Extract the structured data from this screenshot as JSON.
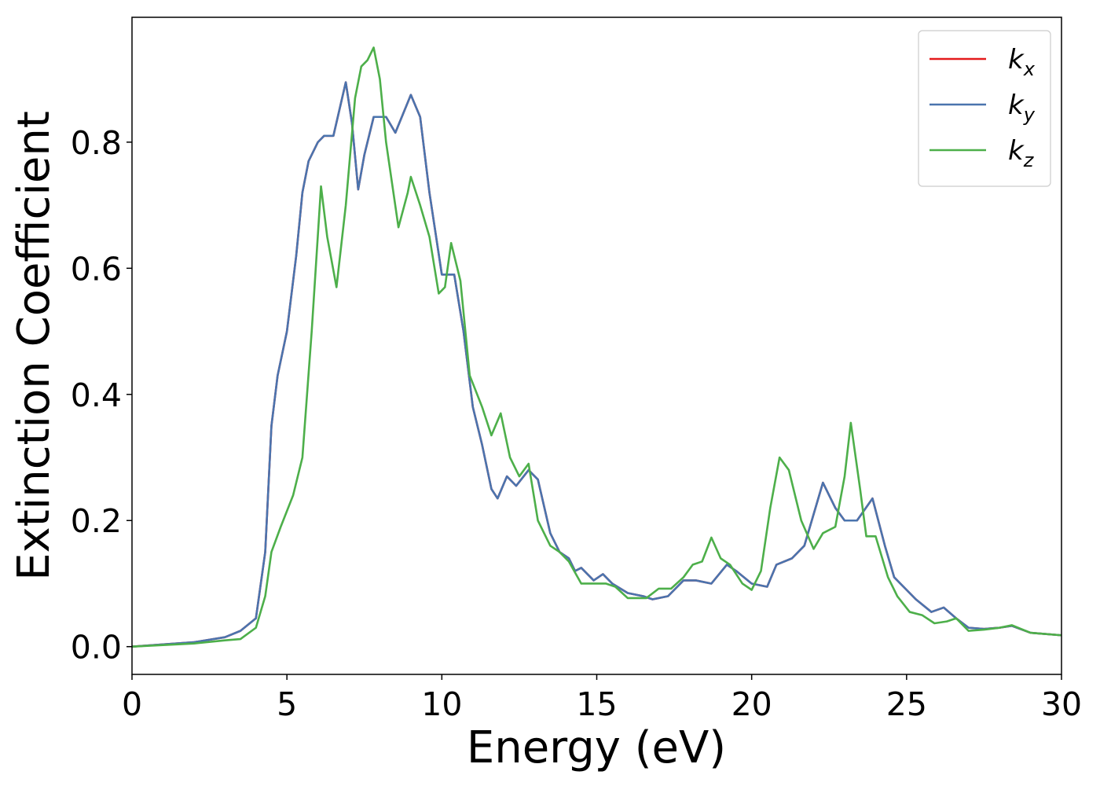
{
  "chart_data": {
    "type": "line",
    "xlabel": "Energy (eV)",
    "ylabel": "Extinction Coefficient",
    "xlim": [
      0,
      30
    ],
    "ylim": [
      -0.044,
      0.998
    ],
    "xticks": [
      0,
      5,
      10,
      15,
      20,
      25,
      30
    ],
    "yticks": [
      {
        "value": 0,
        "label": "0.0"
      },
      0.2,
      0.4,
      0.6,
      0.8
    ],
    "legend": "upper right",
    "series": [
      {
        "name": "kx",
        "color": "#e41a1c",
        "x": [
          0,
          2,
          3,
          3.5,
          4.0,
          4.3,
          4.5,
          4.7,
          5.0,
          5.3,
          5.5,
          5.7,
          6.0,
          6.2,
          6.5,
          6.9,
          7.1,
          7.3,
          7.5,
          7.8,
          8.2,
          8.5,
          9.0,
          9.3,
          9.6,
          10.0,
          10.4,
          10.7,
          11.0,
          11.3,
          11.6,
          11.8,
          12.1,
          12.4,
          12.8,
          13.1,
          13.5,
          13.8,
          14.1,
          14.3,
          14.5,
          14.9,
          15.2,
          15.5,
          16.0,
          16.5,
          16.8,
          17.3,
          17.8,
          18.2,
          18.7,
          19.2,
          19.5,
          20.0,
          20.5,
          20.8,
          21.3,
          21.7,
          22.3,
          22.7,
          23.0,
          23.4,
          23.9,
          24.3,
          24.6,
          25.0,
          25.3,
          25.8,
          26.2,
          26.6,
          27.0,
          27.5,
          28.0,
          28.4,
          29.0,
          30.0
        ],
        "values": [
          0,
          0.007,
          0.015,
          0.025,
          0.045,
          0.15,
          0.35,
          0.43,
          0.5,
          0.62,
          0.72,
          0.77,
          0.8,
          0.81,
          0.81,
          0.895,
          0.83,
          0.725,
          0.78,
          0.84,
          0.84,
          0.815,
          0.875,
          0.84,
          0.72,
          0.59,
          0.59,
          0.5,
          0.38,
          0.32,
          0.25,
          0.235,
          0.27,
          0.255,
          0.28,
          0.265,
          0.18,
          0.15,
          0.14,
          0.12,
          0.125,
          0.105,
          0.115,
          0.1,
          0.085,
          0.08,
          0.075,
          0.08,
          0.105,
          0.105,
          0.1,
          0.13,
          0.12,
          0.1,
          0.095,
          0.13,
          0.14,
          0.16,
          0.26,
          0.22,
          0.2,
          0.2,
          0.235,
          0.16,
          0.11,
          0.09,
          0.075,
          0.055,
          0.062,
          0.045,
          0.03,
          0.028,
          0.03,
          0.033,
          0.022,
          0.018
        ]
      },
      {
        "name": "ky",
        "color": "#4a74ae",
        "x": [
          0,
          2,
          3,
          3.5,
          4.0,
          4.3,
          4.5,
          4.7,
          5.0,
          5.3,
          5.5,
          5.7,
          6.0,
          6.2,
          6.5,
          6.9,
          7.1,
          7.3,
          7.5,
          7.8,
          8.2,
          8.5,
          9.0,
          9.3,
          9.6,
          10.0,
          10.4,
          10.7,
          11.0,
          11.3,
          11.6,
          11.8,
          12.1,
          12.4,
          12.8,
          13.1,
          13.5,
          13.8,
          14.1,
          14.3,
          14.5,
          14.9,
          15.2,
          15.5,
          16.0,
          16.5,
          16.8,
          17.3,
          17.8,
          18.2,
          18.7,
          19.2,
          19.5,
          20.0,
          20.5,
          20.8,
          21.3,
          21.7,
          22.3,
          22.7,
          23.0,
          23.4,
          23.9,
          24.3,
          24.6,
          25.0,
          25.3,
          25.8,
          26.2,
          26.6,
          27.0,
          27.5,
          28.0,
          28.4,
          29.0,
          30.0
        ],
        "values": [
          0,
          0.007,
          0.015,
          0.025,
          0.045,
          0.15,
          0.35,
          0.43,
          0.5,
          0.62,
          0.72,
          0.77,
          0.8,
          0.81,
          0.81,
          0.895,
          0.83,
          0.725,
          0.78,
          0.84,
          0.84,
          0.815,
          0.875,
          0.84,
          0.72,
          0.59,
          0.59,
          0.5,
          0.38,
          0.32,
          0.25,
          0.235,
          0.27,
          0.255,
          0.28,
          0.265,
          0.18,
          0.15,
          0.14,
          0.12,
          0.125,
          0.105,
          0.115,
          0.1,
          0.085,
          0.08,
          0.075,
          0.08,
          0.105,
          0.105,
          0.1,
          0.13,
          0.12,
          0.1,
          0.095,
          0.13,
          0.14,
          0.16,
          0.26,
          0.22,
          0.2,
          0.2,
          0.235,
          0.16,
          0.11,
          0.09,
          0.075,
          0.055,
          0.062,
          0.045,
          0.03,
          0.028,
          0.03,
          0.033,
          0.022,
          0.018
        ]
      },
      {
        "name": "kz",
        "color": "#4daf4a",
        "x": [
          0,
          2,
          3,
          3.5,
          4.0,
          4.3,
          4.5,
          4.8,
          5.2,
          5.5,
          5.8,
          6.1,
          6.3,
          6.6,
          6.9,
          7.2,
          7.4,
          7.6,
          7.8,
          8.0,
          8.2,
          8.6,
          8.9,
          9.0,
          9.3,
          9.6,
          9.9,
          10.1,
          10.3,
          10.6,
          10.9,
          11.3,
          11.6,
          11.9,
          12.2,
          12.5,
          12.8,
          13.1,
          13.5,
          13.8,
          14.1,
          14.5,
          15.0,
          15.3,
          15.6,
          16.0,
          16.6,
          17.0,
          17.4,
          17.8,
          18.1,
          18.4,
          18.7,
          19.0,
          19.3,
          19.7,
          20.0,
          20.3,
          20.6,
          20.9,
          21.2,
          21.6,
          22.0,
          22.3,
          22.7,
          23.0,
          23.2,
          23.5,
          23.7,
          24.0,
          24.4,
          24.7,
          25.1,
          25.5,
          25.9,
          26.3,
          26.6,
          27.0,
          27.5,
          28.0,
          28.4,
          29.0,
          30.0
        ],
        "values": [
          0,
          0.005,
          0.01,
          0.012,
          0.03,
          0.08,
          0.15,
          0.19,
          0.24,
          0.3,
          0.5,
          0.73,
          0.65,
          0.57,
          0.7,
          0.87,
          0.92,
          0.93,
          0.95,
          0.9,
          0.8,
          0.665,
          0.72,
          0.745,
          0.7,
          0.65,
          0.56,
          0.57,
          0.64,
          0.58,
          0.43,
          0.38,
          0.335,
          0.37,
          0.3,
          0.27,
          0.29,
          0.2,
          0.16,
          0.15,
          0.135,
          0.1,
          0.1,
          0.1,
          0.095,
          0.077,
          0.077,
          0.092,
          0.092,
          0.11,
          0.13,
          0.135,
          0.173,
          0.14,
          0.13,
          0.1,
          0.09,
          0.12,
          0.22,
          0.3,
          0.28,
          0.2,
          0.155,
          0.18,
          0.19,
          0.27,
          0.355,
          0.25,
          0.175,
          0.175,
          0.11,
          0.08,
          0.055,
          0.05,
          0.037,
          0.04,
          0.045,
          0.025,
          0.027,
          0.03,
          0.034,
          0.022,
          0.018
        ]
      }
    ]
  }
}
